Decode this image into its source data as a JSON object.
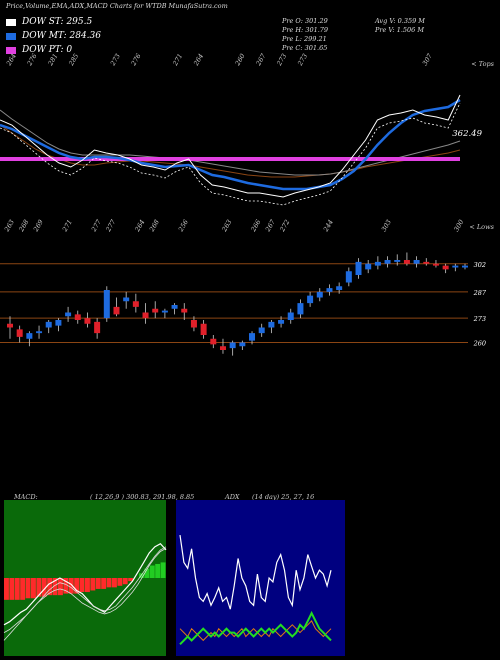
{
  "header": {
    "title": "Price,Volume,EMA,ADX,MACD Charts for WTDB MunafaSutra.com"
  },
  "legend": [
    {
      "label": "DOW ST: 295.5",
      "color": "#ffffff"
    },
    {
      "label": "DOW MT: 284.36",
      "color": "#1e6be0"
    },
    {
      "label": "DOW PT: 0",
      "color": "#e040e0"
    }
  ],
  "stats": {
    "pre_o": "Pre  O: 301.29",
    "pre_h": "Pre  H: 301.79",
    "pre_l": "Pre  L: 299.21",
    "pre_c": "Pre  C: 301.65",
    "avg_v": "Avg V: 0.359  M",
    "pre_v": "Pre  V: 1.506  M"
  },
  "colors": {
    "up": "#1e6be0",
    "down": "#e0202a",
    "ema_fast": "#1e6be0",
    "ema_slow": "#e040e0",
    "level_line": "#8b4513",
    "macd_bg": "#0a6a0a",
    "adx_bg": "#000080"
  },
  "chart_data": [
    {
      "type": "line",
      "panel": "ema",
      "corner_label": "< Tops",
      "current_label": "362.49",
      "top_tick_labels": [
        "264",
        "276",
        "281",
        "285",
        "",
        "273",
        "276",
        "",
        "271",
        "264",
        "",
        "260",
        "267",
        "273",
        "273",
        "",
        "",
        "",
        "",
        "",
        "307"
      ],
      "series": [
        {
          "values": [
            335,
            330,
            320,
            310,
            300,
            292,
            288,
            295,
            305,
            302,
            300,
            296,
            290,
            288,
            285,
            292,
            296,
            280,
            270,
            268,
            265,
            262,
            262,
            260,
            258,
            262,
            265,
            268,
            272,
            285,
            300,
            315,
            335,
            340,
            342,
            345,
            340,
            338,
            335,
            360
          ]
        },
        {
          "values": [
            330,
            326,
            320,
            314,
            308,
            302,
            298,
            296,
            298,
            298,
            297,
            295,
            292,
            290,
            288,
            289,
            290,
            285,
            280,
            278,
            275,
            272,
            270,
            268,
            266,
            266,
            266,
            268,
            270,
            276,
            284,
            296,
            310,
            322,
            332,
            340,
            344,
            346,
            348,
            355
          ]
        }
      ]
    },
    {
      "type": "bar",
      "panel": "price",
      "corner_label": "< Lows",
      "price_labels": [
        "302",
        "287",
        "273",
        "260"
      ],
      "top_tick_labels": [
        "263",
        "268",
        "269",
        "",
        "271",
        "",
        "277",
        "277",
        "",
        "264",
        "268",
        "",
        "256",
        "",
        "",
        "263",
        "",
        "266",
        "267",
        "272",
        "",
        "",
        "244",
        "",
        "",
        "",
        "303",
        "",
        "",
        "",
        "",
        "300"
      ],
      "candles": [
        {
          "o": 270,
          "h": 274,
          "l": 262,
          "c": 268
        },
        {
          "o": 267,
          "h": 269,
          "l": 260,
          "c": 263
        },
        {
          "o": 262,
          "h": 266,
          "l": 258,
          "c": 265
        },
        {
          "o": 265,
          "h": 269,
          "l": 262,
          "c": 266
        },
        {
          "o": 268,
          "h": 272,
          "l": 265,
          "c": 271
        },
        {
          "o": 269,
          "h": 273,
          "l": 266,
          "c": 272
        },
        {
          "o": 274,
          "h": 279,
          "l": 271,
          "c": 276
        },
        {
          "o": 275,
          "h": 277,
          "l": 270,
          "c": 272
        },
        {
          "o": 273,
          "h": 276,
          "l": 268,
          "c": 270
        },
        {
          "o": 271,
          "h": 273,
          "l": 262,
          "c": 265
        },
        {
          "o": 273,
          "h": 290,
          "l": 271,
          "c": 288
        },
        {
          "o": 279,
          "h": 284,
          "l": 274,
          "c": 275
        },
        {
          "o": 282,
          "h": 287,
          "l": 278,
          "c": 284
        },
        {
          "o": 282,
          "h": 286,
          "l": 276,
          "c": 279
        },
        {
          "o": 276,
          "h": 281,
          "l": 270,
          "c": 273
        },
        {
          "o": 278,
          "h": 282,
          "l": 273,
          "c": 276
        },
        {
          "o": 276,
          "h": 278,
          "l": 273,
          "c": 277
        },
        {
          "o": 278,
          "h": 281,
          "l": 275,
          "c": 280
        },
        {
          "o": 278,
          "h": 281,
          "l": 272,
          "c": 276
        },
        {
          "o": 272,
          "h": 274,
          "l": 266,
          "c": 268
        },
        {
          "o": 270,
          "h": 272,
          "l": 262,
          "c": 264
        },
        {
          "o": 262,
          "h": 264,
          "l": 257,
          "c": 259
        },
        {
          "o": 258,
          "h": 262,
          "l": 254,
          "c": 256
        },
        {
          "o": 257,
          "h": 261,
          "l": 253,
          "c": 260
        },
        {
          "o": 258,
          "h": 261,
          "l": 256,
          "c": 260
        },
        {
          "o": 261,
          "h": 266,
          "l": 259,
          "c": 265
        },
        {
          "o": 265,
          "h": 270,
          "l": 263,
          "c": 268
        },
        {
          "o": 268,
          "h": 272,
          "l": 265,
          "c": 271
        },
        {
          "o": 270,
          "h": 274,
          "l": 268,
          "c": 272
        },
        {
          "o": 272,
          "h": 278,
          "l": 270,
          "c": 276
        },
        {
          "o": 275,
          "h": 283,
          "l": 273,
          "c": 281
        },
        {
          "o": 281,
          "h": 287,
          "l": 279,
          "c": 285
        },
        {
          "o": 284,
          "h": 289,
          "l": 282,
          "c": 287
        },
        {
          "o": 287,
          "h": 291,
          "l": 285,
          "c": 289
        },
        {
          "o": 288,
          "h": 292,
          "l": 286,
          "c": 290
        },
        {
          "o": 292,
          "h": 300,
          "l": 290,
          "c": 298
        },
        {
          "o": 296,
          "h": 305,
          "l": 294,
          "c": 303
        },
        {
          "o": 299,
          "h": 304,
          "l": 297,
          "c": 302
        },
        {
          "o": 301,
          "h": 306,
          "l": 299,
          "c": 303
        },
        {
          "o": 302,
          "h": 306,
          "l": 300,
          "c": 304
        },
        {
          "o": 303,
          "h": 307,
          "l": 301,
          "c": 304
        },
        {
          "o": 304,
          "h": 308,
          "l": 301,
          "c": 302
        },
        {
          "o": 302,
          "h": 306,
          "l": 300,
          "c": 304
        },
        {
          "o": 303,
          "h": 305,
          "l": 301,
          "c": 302
        },
        {
          "o": 302,
          "h": 304,
          "l": 300,
          "c": 301
        },
        {
          "o": 301,
          "h": 302,
          "l": 297,
          "c": 299
        },
        {
          "o": 300,
          "h": 302,
          "l": 298,
          "c": 301
        },
        {
          "o": 300,
          "h": 302,
          "l": 299,
          "c": 301
        }
      ],
      "levels": [
        302,
        287,
        273,
        260
      ],
      "ylim": [
        240,
        320
      ]
    },
    {
      "type": "line",
      "panel": "macd",
      "header": "MACD:",
      "values_text": "( 12,26,9 ) 300.83,  291.98,  8.85",
      "histogram": [
        -14,
        -14,
        -14,
        -14,
        -13,
        -13,
        -12,
        -12,
        -11,
        -11,
        -11,
        -10,
        -10,
        -10,
        -9,
        -9,
        -8,
        -7,
        -7,
        -6,
        -6,
        -5,
        -4,
        -2,
        0,
        3,
        6,
        8,
        9,
        10
      ],
      "series": [
        {
          "values": [
            -30,
            -28,
            -25,
            -22,
            -20,
            -16,
            -12,
            -8,
            -4,
            -2,
            0,
            -2,
            -4,
            -8,
            -10,
            -14,
            -18,
            -20,
            -22,
            -18,
            -14,
            -10,
            -6,
            -2,
            4,
            10,
            16,
            20,
            22,
            18
          ]
        },
        {
          "values": [
            -35,
            -33,
            -30,
            -27,
            -24,
            -20,
            -16,
            -12,
            -8,
            -5,
            -3,
            -4,
            -6,
            -9,
            -12,
            -15,
            -18,
            -20,
            -21,
            -20,
            -18,
            -14,
            -10,
            -6,
            -1,
            4,
            9,
            14,
            18,
            20
          ]
        },
        {
          "values": [
            -40,
            -36,
            -32,
            -28,
            -24,
            -20,
            -16,
            -13,
            -10,
            -8,
            -7,
            -8,
            -10,
            -13,
            -16,
            -18,
            -20,
            -22,
            -23,
            -22,
            -20,
            -17,
            -13,
            -9,
            -4,
            2,
            8,
            13,
            17,
            19
          ]
        }
      ]
    },
    {
      "type": "line",
      "panel": "adx",
      "header": "ADX",
      "values_text": "(14 day) 25, 27, 16",
      "series": [
        {
          "values": [
            62,
            48,
            45,
            55,
            40,
            30,
            28,
            32,
            26,
            30,
            35,
            28,
            30,
            24,
            36,
            50,
            40,
            36,
            28,
            26,
            42,
            30,
            28,
            40,
            38,
            48,
            52,
            44,
            30,
            26,
            44,
            34,
            40,
            52,
            46,
            40,
            44,
            42,
            36,
            44
          ]
        },
        {
          "values": [
            14,
            12,
            10,
            14,
            12,
            10,
            8,
            10,
            12,
            10,
            14,
            12,
            10,
            12,
            10,
            12,
            14,
            10,
            12,
            14,
            12,
            10,
            12,
            10,
            14,
            12,
            10,
            12,
            14,
            16,
            14,
            12,
            14,
            16,
            18,
            14,
            12,
            10,
            12,
            14
          ]
        },
        {
          "values": [
            6,
            8,
            10,
            8,
            10,
            12,
            14,
            12,
            10,
            12,
            10,
            12,
            14,
            12,
            12,
            10,
            12,
            14,
            12,
            10,
            12,
            14,
            12,
            14,
            12,
            14,
            16,
            14,
            12,
            10,
            12,
            16,
            14,
            18,
            22,
            18,
            14,
            12,
            10,
            8
          ]
        }
      ]
    }
  ]
}
